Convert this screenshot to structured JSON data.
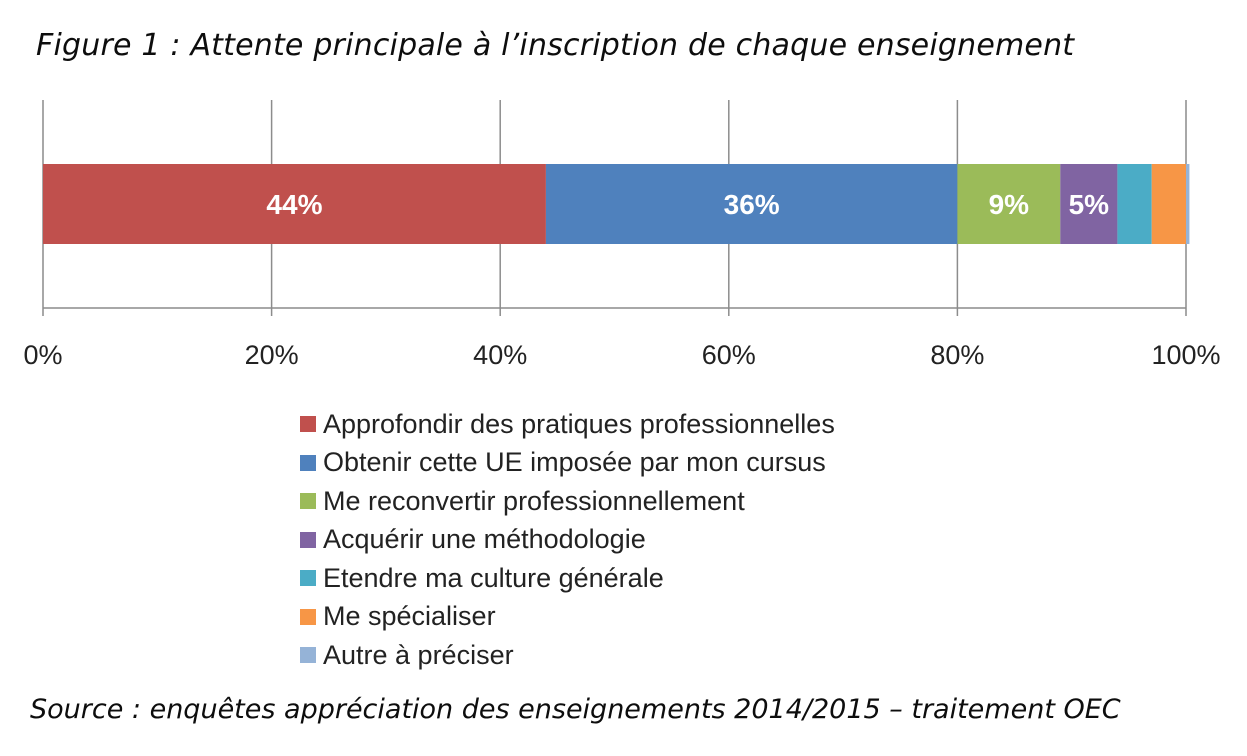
{
  "figure_title": "Figure 1 : Attente principale à l’inscription de chaque enseignement",
  "source": "Source : enquêtes appréciation des enseignements 2014/2015 – traitement OEC",
  "chart_data": {
    "type": "bar",
    "orientation": "horizontal",
    "stacked": true,
    "normalized": true,
    "title": "Figure 1 : Attente principale à l’inscription de chaque enseignement",
    "xlabel": "",
    "ylabel": "",
    "xlim": [
      0,
      100
    ],
    "x_ticks": [
      0,
      20,
      40,
      60,
      80,
      100
    ],
    "x_tick_labels": [
      "0%",
      "20%",
      "40%",
      "60%",
      "80%",
      "100%"
    ],
    "grid": "vertical",
    "legend_position": "bottom",
    "categories": [
      ""
    ],
    "series": [
      {
        "name": "Approfondir des pratiques professionnelles",
        "values": [
          44
        ],
        "color": "#c0504d",
        "data_label": "44%"
      },
      {
        "name": "Obtenir cette UE imposée par mon cursus",
        "values": [
          36
        ],
        "color": "#4f81bd",
        "data_label": "36%"
      },
      {
        "name": "Me reconvertir professionnellement",
        "values": [
          9
        ],
        "color": "#9bbb59",
        "data_label": "9%"
      },
      {
        "name": "Acquérir une méthodologie",
        "values": [
          5
        ],
        "color": "#8064a2",
        "data_label": "5%"
      },
      {
        "name": "Etendre ma culture générale",
        "values": [
          3
        ],
        "color": "#4bacc6",
        "data_label": ""
      },
      {
        "name": "Me spécialiser",
        "values": [
          3
        ],
        "color": "#f79646",
        "data_label": ""
      },
      {
        "name": "Autre à préciser",
        "values": [
          0.3
        ],
        "color": "#95b3d7",
        "data_label": ""
      }
    ]
  }
}
